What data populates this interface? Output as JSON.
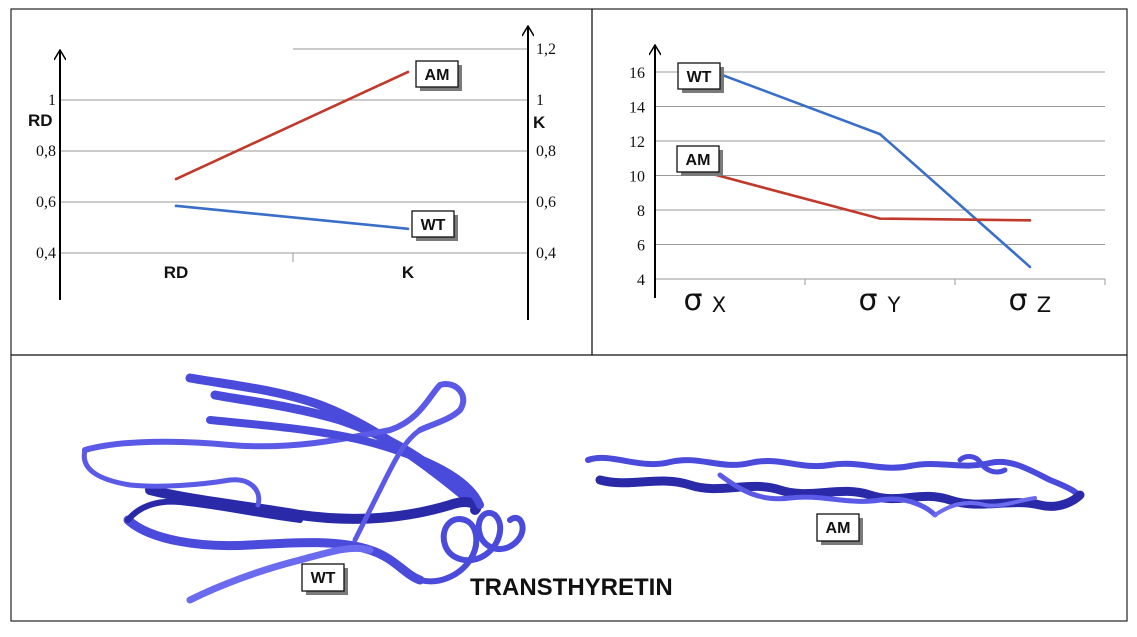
{
  "colors": {
    "wt": "#3a6fc8",
    "am": "#c0392b",
    "ribbon": "#4a4adb",
    "ribbon_dark": "#2a2aa8"
  },
  "chart_data": [
    {
      "type": "line",
      "title": "",
      "categories": [
        "RD",
        "K"
      ],
      "left_axis": {
        "label": "RD",
        "ticks": [
          "1",
          "0,8",
          "0,6",
          "0,4"
        ],
        "tick_values": [
          1,
          0.8,
          0.6,
          0.4
        ],
        "ylim": [
          0.4,
          1.2
        ]
      },
      "right_axis": {
        "label": "K",
        "ticks": [
          "1,2",
          "1",
          "0,8",
          "0,6",
          "0,4"
        ],
        "tick_values": [
          1.2,
          1,
          0.8,
          0.6,
          0.4
        ],
        "ylim": [
          0.4,
          1.2
        ]
      },
      "series": [
        {
          "name": "AM",
          "color": "#c0392b",
          "values": [
            0.69,
            1.11
          ]
        },
        {
          "name": "WT",
          "color": "#3a6fc8",
          "values": [
            0.585,
            0.495
          ]
        }
      ],
      "grid": true
    },
    {
      "type": "line",
      "title": "",
      "categories": [
        {
          "base": "σ",
          "sub": "X"
        },
        {
          "base": "σ",
          "sub": "Y"
        },
        {
          "base": "σ",
          "sub": "Z"
        }
      ],
      "y_ticks": [
        "16",
        "14",
        "12",
        "10",
        "8",
        "6",
        "4"
      ],
      "y_tick_values": [
        16,
        14,
        12,
        10,
        8,
        6,
        4
      ],
      "ylim": [
        4,
        16
      ],
      "series": [
        {
          "name": "WT",
          "color": "#3a6fc8",
          "values": [
            16.2,
            12.4,
            4.7
          ]
        },
        {
          "name": "AM",
          "color": "#c0392b",
          "values": [
            10.2,
            7.5,
            7.4
          ]
        }
      ],
      "grid": true
    }
  ],
  "structures": {
    "wt_label": "WT",
    "am_label": "AM",
    "caption": "TRANSTHYRETIN"
  }
}
